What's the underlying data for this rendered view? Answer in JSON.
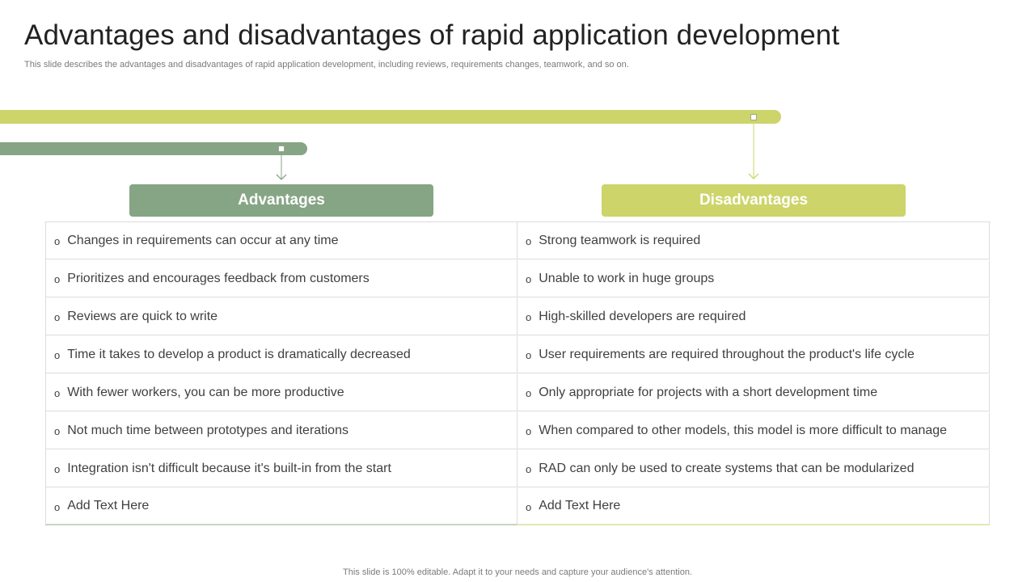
{
  "slide": {
    "title": "Advantages and disadvantages of rapid application development",
    "subtitle": "This slide describes the advantages and disadvantages of rapid application development, including reviews, requirements changes, teamwork, and so on.",
    "footer": "This slide is 100% editable. Adapt it to your needs and capture your audience's attention."
  },
  "colors": {
    "advantages_accent": "#86a584",
    "disadvantages_accent": "#cdd46a"
  },
  "advantages": {
    "header": "Advantages",
    "items": [
      "Changes in requirements can occur at any time",
      "Prioritizes and encourages feedback from customers",
      "Reviews are quick to write",
      "Time it takes to develop a product is dramatically decreased",
      "With fewer workers, you can be more productive",
      "Not much time between prototypes and iterations",
      "Integration isn't difficult because it's built-in from the start",
      "Add Text Here"
    ]
  },
  "disadvantages": {
    "header": "Disadvantages",
    "items": [
      "Strong teamwork is required",
      "Unable to work in huge groups",
      "High-skilled developers are required",
      "User requirements are required throughout  the product's life cycle",
      "Only appropriate for projects with a short development time",
      "When compared to other models, this model is more difficult to manage",
      "RAD can only be used to create systems that can be modularized",
      "Add Text Here"
    ]
  },
  "bullet_glyph": "o"
}
